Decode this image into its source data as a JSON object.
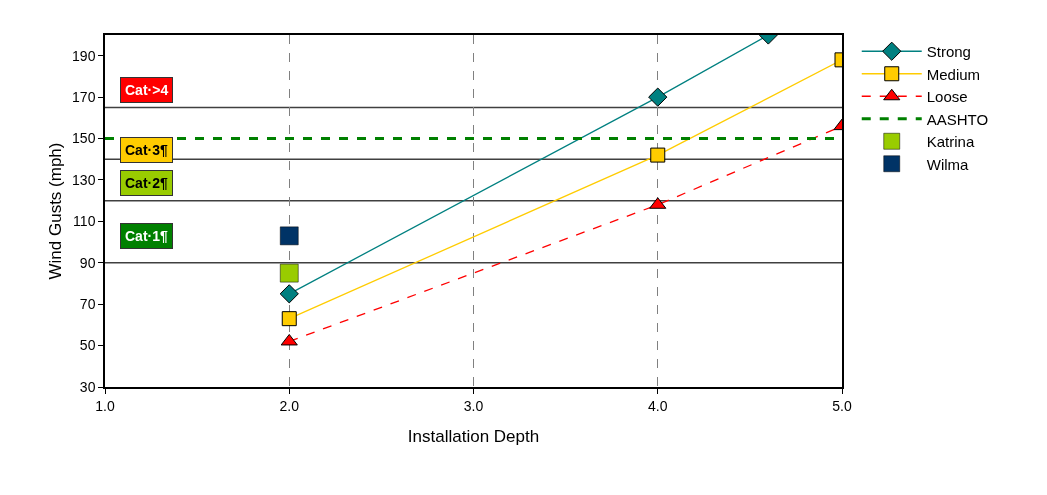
{
  "chart_data": {
    "type": "line",
    "xlabel": "Installation Depth",
    "ylabel": "Wind Gusts (mph)",
    "xlim": [
      1,
      5
    ],
    "xticks": [
      {
        "value": 1,
        "label": "1.0"
      },
      {
        "value": 2,
        "label": "2.0"
      },
      {
        "value": 3,
        "label": "3.0"
      },
      {
        "value": 4,
        "label": "4.0"
      },
      {
        "value": 5,
        "label": "5.0"
      }
    ],
    "ylim": [
      30,
      200
    ],
    "yticks": [
      30,
      50,
      70,
      90,
      110,
      130,
      150,
      170,
      190
    ],
    "grid": "x",
    "legend": "right",
    "series": [
      {
        "name": "Strong",
        "color": "#008080",
        "marker": "diamond",
        "line_style": "solid",
        "x": [
          2,
          4,
          4.6
        ],
        "values": [
          75,
          170,
          200
        ]
      },
      {
        "name": "Medium",
        "color": "#ffcc00",
        "marker": "square",
        "line_style": "solid",
        "x": [
          2,
          4,
          5
        ],
        "values": [
          63,
          142,
          188
        ]
      },
      {
        "name": "Loose",
        "color": "#ff0000",
        "marker": "triangle",
        "line_style": "dashed",
        "x": [
          2,
          4,
          5
        ],
        "values": [
          52,
          118,
          156
        ]
      },
      {
        "name": "AASHTO",
        "color": "#008000",
        "marker": "none",
        "line_style": "dashed",
        "x": [
          1,
          5
        ],
        "values": [
          150,
          150
        ]
      },
      {
        "name": "Katrina",
        "type": "scatter",
        "color": "#99cc00",
        "marker": "square",
        "x": [
          2
        ],
        "values": [
          85
        ]
      },
      {
        "name": "Wilma",
        "type": "scatter",
        "color": "#003366",
        "marker": "square",
        "x": [
          2
        ],
        "values": [
          103
        ]
      }
    ],
    "ref_lines": [
      {
        "axis": "y",
        "value": 90,
        "color": "#404040"
      },
      {
        "axis": "y",
        "value": 120,
        "color": "#404040"
      },
      {
        "axis": "y",
        "value": 140,
        "color": "#404040"
      },
      {
        "axis": "y",
        "value": 165,
        "color": "#404040"
      }
    ],
    "annotations": [
      "Cat·>4",
      "Cat·3¶",
      "Cat·2¶",
      "Cat·1¶"
    ]
  }
}
